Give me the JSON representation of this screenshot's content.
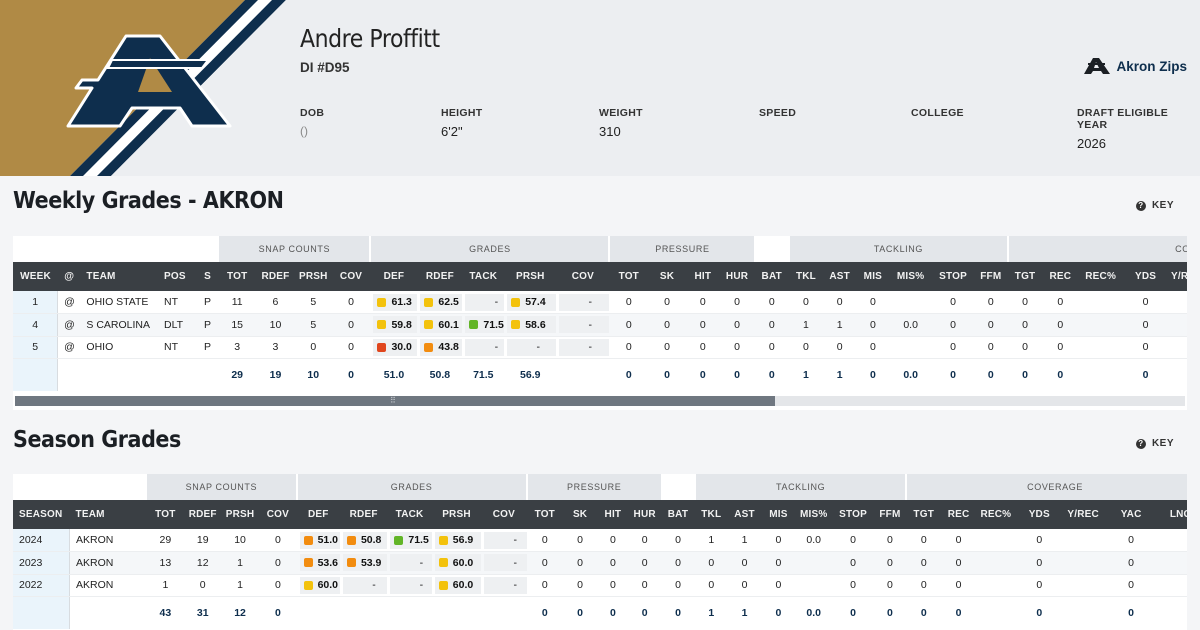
{
  "player": {
    "name": "Andre Proffitt",
    "position": "DI #D95",
    "team_name": "Akron Zips",
    "attributes": [
      {
        "label": "DOB",
        "value": "()"
      },
      {
        "label": "HEIGHT",
        "value": "6'2\""
      },
      {
        "label": "WEIGHT",
        "value": "310"
      },
      {
        "label": "SPEED",
        "value": ""
      },
      {
        "label": "COLLEGE",
        "value": ""
      },
      {
        "label": "DRAFT ELIGIBLE YEAR",
        "value": "2026"
      }
    ]
  },
  "colors": {
    "gold": "#b08a45",
    "navy": "#0e2e4d",
    "header_dark": "#3a3f44",
    "grade_red": "#e0461d",
    "grade_orange": "#f28c0f",
    "grade_yellow": "#f3c20c",
    "grade_green": "#62b527"
  },
  "weekly": {
    "title": "Weekly Grades - AKRON",
    "key_label": "KEY",
    "groups": [
      "SNAP COUNTS",
      "GRADES",
      "PRESSURE",
      "TACKLING",
      "COVE"
    ],
    "columns": [
      "WEEK",
      "@",
      "TEAM",
      "POS",
      "S",
      "TOT",
      "RDEF",
      "PRSH",
      "COV",
      "DEF",
      "RDEF",
      "TACK",
      "PRSH",
      "COV",
      "TOT",
      "SK",
      "HIT",
      "HUR",
      "BAT",
      "TKL",
      "AST",
      "MIS",
      "MIS%",
      "STOP",
      "FFM",
      "TGT",
      "REC",
      "REC%",
      "YDS",
      "Y/REC"
    ],
    "rows": [
      {
        "cells": [
          "1",
          "@",
          "OHIO STATE",
          "NT",
          "P",
          "11",
          "6",
          "5",
          "0",
          "61.3",
          "62.5",
          "-",
          "57.4",
          "-",
          "0",
          "0",
          "0",
          "0",
          "0",
          "0",
          "0",
          "0",
          "",
          "0",
          "0",
          "0",
          "0",
          "",
          "0",
          ""
        ],
        "grade_colors": [
          "yellow",
          "yellow",
          "",
          "yellow",
          ""
        ]
      },
      {
        "cells": [
          "4",
          "@",
          "S CAROLINA",
          "DLT",
          "P",
          "15",
          "10",
          "5",
          "0",
          "59.8",
          "60.1",
          "71.5",
          "58.6",
          "-",
          "0",
          "0",
          "0",
          "0",
          "0",
          "1",
          "1",
          "0",
          "0.0",
          "0",
          "0",
          "0",
          "0",
          "",
          "0",
          ""
        ],
        "grade_colors": [
          "yellow",
          "yellow",
          "green",
          "yellow",
          ""
        ]
      },
      {
        "cells": [
          "5",
          "@",
          "OHIO",
          "NT",
          "P",
          "3",
          "3",
          "0",
          "0",
          "30.0",
          "43.8",
          "-",
          "-",
          "-",
          "0",
          "0",
          "0",
          "0",
          "0",
          "0",
          "0",
          "0",
          "",
          "0",
          "0",
          "0",
          "0",
          "",
          "0",
          ""
        ],
        "grade_colors": [
          "red",
          "orange",
          "",
          "",
          ""
        ]
      }
    ],
    "totals": [
      "",
      "",
      "",
      "",
      "",
      "29",
      "19",
      "10",
      "0",
      "51.0",
      "50.8",
      "71.5",
      "56.9",
      "",
      "0",
      "0",
      "0",
      "0",
      "0",
      "1",
      "1",
      "0",
      "0.0",
      "0",
      "0",
      "0",
      "0",
      "",
      "0",
      ""
    ]
  },
  "season": {
    "title": "Season Grades",
    "key_label": "KEY",
    "groups": [
      "SNAP COUNTS",
      "GRADES",
      "PRESSURE",
      "TACKLING",
      "COVERAGE"
    ],
    "columns": [
      "SEASON",
      "TEAM",
      "TOT",
      "RDEF",
      "PRSH",
      "COV",
      "DEF",
      "RDEF",
      "TACK",
      "PRSH",
      "COV",
      "TOT",
      "SK",
      "HIT",
      "HUR",
      "BAT",
      "TKL",
      "AST",
      "MIS",
      "MIS%",
      "STOP",
      "FFM",
      "TGT",
      "REC",
      "REC%",
      "YDS",
      "Y/REC",
      "YAC",
      "LNG"
    ],
    "rows": [
      {
        "cells": [
          "2024",
          "AKRON",
          "29",
          "19",
          "10",
          "0",
          "51.0",
          "50.8",
          "71.5",
          "56.9",
          "-",
          "0",
          "0",
          "0",
          "0",
          "0",
          "1",
          "1",
          "0",
          "0.0",
          "0",
          "0",
          "0",
          "0",
          "",
          "0",
          "",
          "0",
          ""
        ],
        "grade_colors": [
          "orange",
          "orange",
          "green",
          "yellow",
          ""
        ]
      },
      {
        "cells": [
          "2023",
          "AKRON",
          "13",
          "12",
          "1",
          "0",
          "53.6",
          "53.9",
          "-",
          "60.0",
          "-",
          "0",
          "0",
          "0",
          "0",
          "0",
          "0",
          "0",
          "0",
          "",
          "0",
          "0",
          "0",
          "0",
          "",
          "0",
          "",
          "0",
          ""
        ],
        "grade_colors": [
          "orange",
          "orange",
          "",
          "yellow",
          ""
        ]
      },
      {
        "cells": [
          "2022",
          "AKRON",
          "1",
          "0",
          "1",
          "0",
          "60.0",
          "-",
          "-",
          "60.0",
          "-",
          "0",
          "0",
          "0",
          "0",
          "0",
          "0",
          "0",
          "0",
          "",
          "0",
          "0",
          "0",
          "0",
          "",
          "0",
          "",
          "0",
          ""
        ],
        "grade_colors": [
          "yellow",
          "",
          "",
          "yellow",
          ""
        ]
      }
    ],
    "totals": [
      "",
      "",
      "43",
      "31",
      "12",
      "0",
      "",
      "",
      "",
      "",
      "",
      "0",
      "0",
      "0",
      "0",
      "0",
      "1",
      "1",
      "0",
      "0.0",
      "0",
      "0",
      "0",
      "0",
      "",
      "0",
      "",
      "0",
      ""
    ]
  }
}
